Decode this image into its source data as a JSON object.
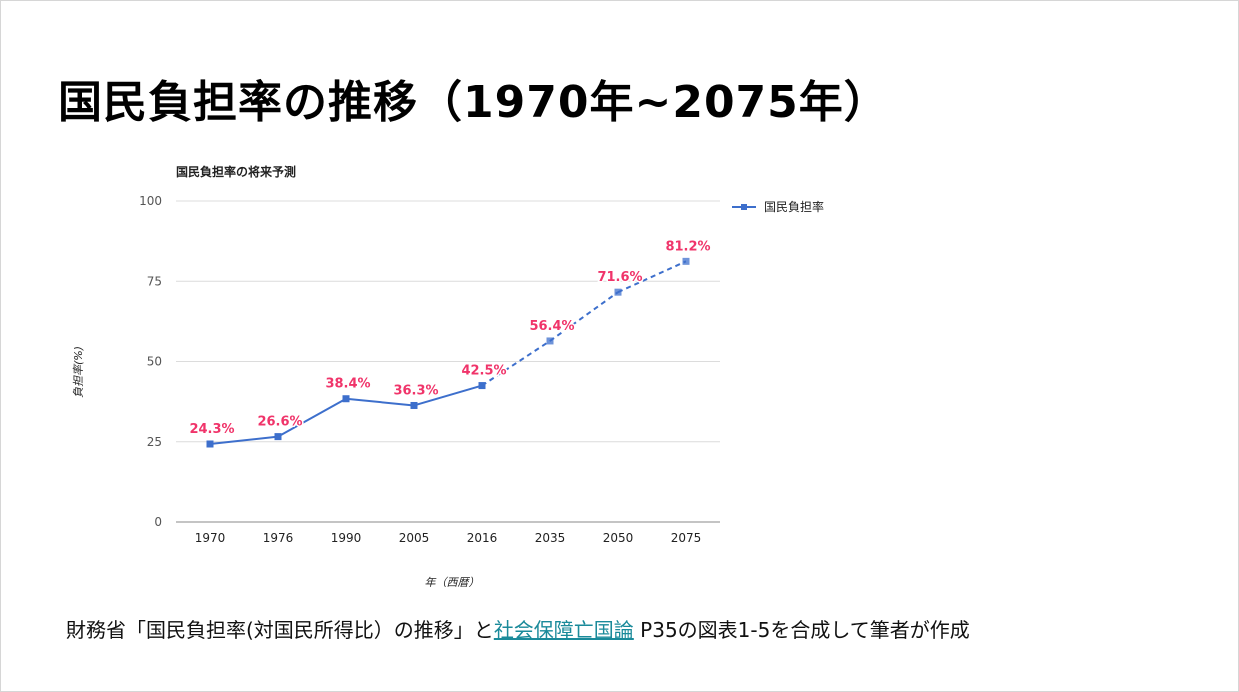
{
  "slide": {
    "title": "国民負担率の推移（1970年~2075年）",
    "caption_pre": "財務省「国民負担率(対国民所得比）の推移」と",
    "caption_link": "社会保障亡国論",
    "caption_post": " P35の図表1-5を合成して筆者が作成"
  },
  "colors": {
    "line": "#3d6fcc",
    "label": "#f0346a",
    "grid": "#dcdcdc",
    "axis": "#555555"
  },
  "chart_data": {
    "type": "line",
    "title": "国民負担率の将来予測",
    "xlabel": "年（西暦）",
    "ylabel": "負担率(%)",
    "categories": [
      "1970",
      "1976",
      "1990",
      "2005",
      "2016",
      "2035",
      "2050",
      "2075"
    ],
    "yticks": [
      "0",
      "25",
      "50",
      "75",
      "100"
    ],
    "ylim": [
      0,
      100
    ],
    "grid": true,
    "legend_position": "right",
    "series": [
      {
        "name": "国民負担率",
        "values": [
          24.3,
          26.6,
          38.4,
          36.3,
          42.5,
          56.4,
          71.6,
          81.2
        ],
        "labels": [
          "24.3%",
          "26.6%",
          "38.4%",
          "36.3%",
          "42.5%",
          "56.4%",
          "71.6%",
          "81.2%"
        ],
        "projected_from_index": 4
      }
    ]
  }
}
